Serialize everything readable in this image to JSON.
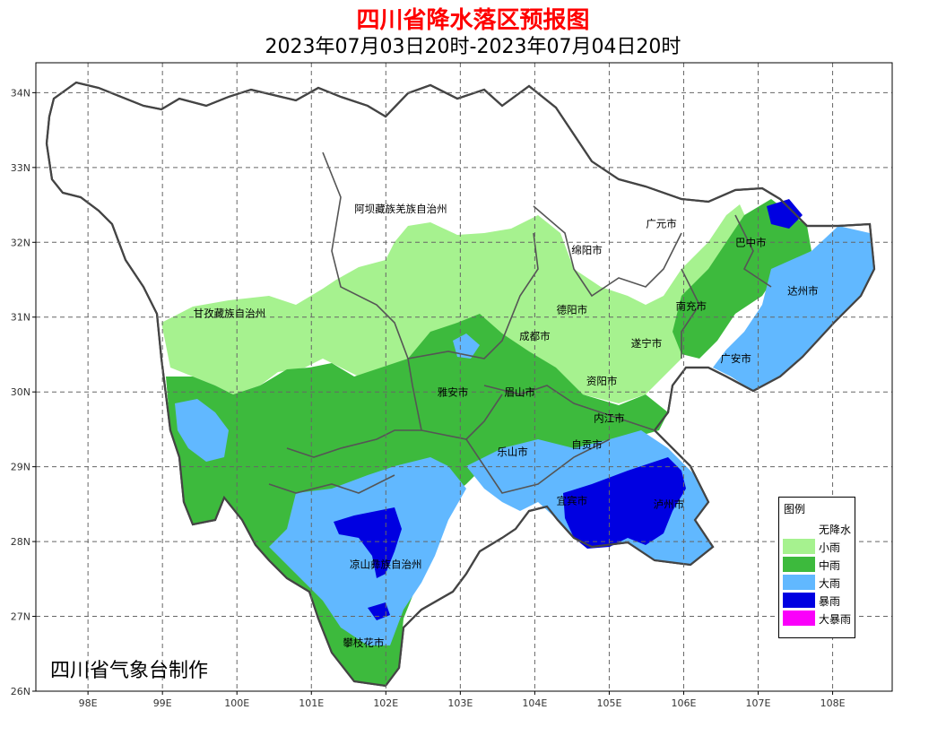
{
  "title": "四川省降水落区预报图",
  "subtitle": "2023年07月03日20时-2023年07月04日20时",
  "credit": "四川省气象台制作",
  "axes": {
    "x_ticks": [
      98,
      99,
      100,
      101,
      102,
      103,
      104,
      105,
      106,
      107,
      108
    ],
    "x_tick_labels": [
      "98E",
      "99E",
      "100E",
      "101E",
      "102E",
      "103E",
      "104E",
      "105E",
      "106E",
      "107E",
      "108E"
    ],
    "y_ticks": [
      34,
      33,
      32,
      31,
      30,
      29,
      28,
      27,
      26
    ],
    "y_tick_labels": [
      "34N",
      "33N",
      "32N",
      "31N",
      "30N",
      "29N",
      "28N",
      "27N",
      "26N"
    ],
    "lon_range": [
      97.3,
      108.8
    ],
    "lat_range": [
      26,
      34.4
    ],
    "grid": true
  },
  "legend": {
    "title": "图例",
    "items": [
      {
        "label": "无降水",
        "color": "#ffffff"
      },
      {
        "label": "小雨",
        "color": "#a6f28f"
      },
      {
        "label": "中雨",
        "color": "#3dba3d"
      },
      {
        "label": "大雨",
        "color": "#61b8ff"
      },
      {
        "label": "暴雨",
        "color": "#0000e1"
      },
      {
        "label": "大暴雨",
        "color": "#fa00fa"
      }
    ]
  },
  "cities": [
    {
      "name": "阿坝藏族羌族自治州",
      "lon": 102.2,
      "lat": 32.4
    },
    {
      "name": "甘孜藏族自治州",
      "lon": 99.9,
      "lat": 31.0
    },
    {
      "name": "广元市",
      "lon": 105.7,
      "lat": 32.2
    },
    {
      "name": "巴中市",
      "lon": 106.9,
      "lat": 31.95
    },
    {
      "name": "绵阳市",
      "lon": 104.7,
      "lat": 31.85
    },
    {
      "name": "达州市",
      "lon": 107.6,
      "lat": 31.3
    },
    {
      "name": "南充市",
      "lon": 106.1,
      "lat": 31.1
    },
    {
      "name": "德阳市",
      "lon": 104.5,
      "lat": 31.05
    },
    {
      "name": "遂宁市",
      "lon": 105.5,
      "lat": 30.6
    },
    {
      "name": "成都市",
      "lon": 104.0,
      "lat": 30.7
    },
    {
      "name": "广安市",
      "lon": 106.7,
      "lat": 30.4
    },
    {
      "name": "资阳市",
      "lon": 104.9,
      "lat": 30.1
    },
    {
      "name": "雅安市",
      "lon": 102.9,
      "lat": 29.95
    },
    {
      "name": "眉山市",
      "lon": 103.8,
      "lat": 29.95
    },
    {
      "name": "内江市",
      "lon": 105.0,
      "lat": 29.6
    },
    {
      "name": "乐山市",
      "lon": 103.7,
      "lat": 29.15
    },
    {
      "name": "自贡市",
      "lon": 104.7,
      "lat": 29.25
    },
    {
      "name": "宜宾市",
      "lon": 104.5,
      "lat": 28.5
    },
    {
      "name": "泸州市",
      "lon": 105.8,
      "lat": 28.45
    },
    {
      "name": "凉山彝族自治州",
      "lon": 102.0,
      "lat": 27.65
    },
    {
      "name": "攀枝花市",
      "lon": 101.7,
      "lat": 26.6
    }
  ]
}
